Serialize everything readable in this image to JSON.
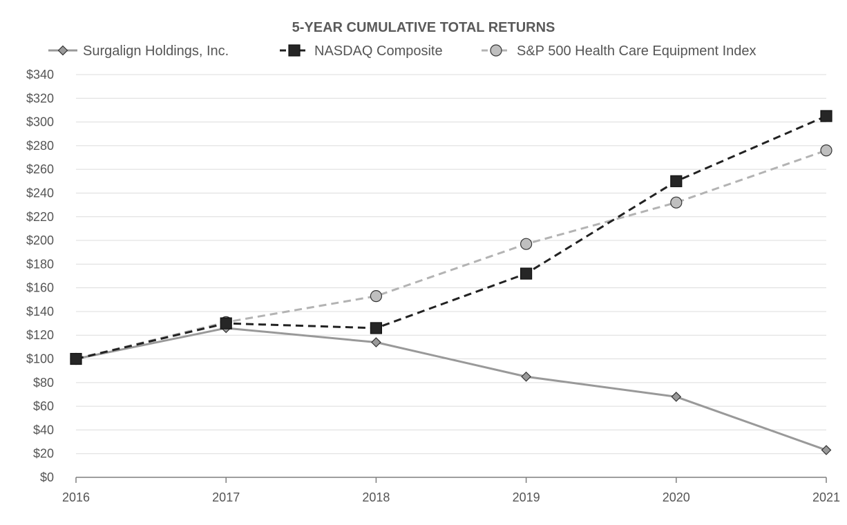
{
  "chart_data": {
    "type": "line",
    "title": "5-YEAR CUMULATIVE TOTAL RETURNS",
    "xlabel": "",
    "ylabel": "",
    "x": [
      "2016",
      "2017",
      "2018",
      "2019",
      "2020",
      "2021"
    ],
    "ylim": [
      0,
      340
    ],
    "ytick_step": 20,
    "ytick_prefix": "$",
    "grid": true,
    "legend_position": "top",
    "series": [
      {
        "name": "Surgalign Holdings, Inc.",
        "values": [
          100,
          126,
          114,
          85,
          68,
          23
        ],
        "marker": "diamond",
        "line_style": "solid",
        "color": "#999999",
        "marker_fill": "#999999"
      },
      {
        "name": "NASDAQ Composite",
        "values": [
          100,
          130,
          126,
          172,
          250,
          305
        ],
        "marker": "square",
        "line_style": "dashed",
        "color": "#222222",
        "marker_fill": "#262626"
      },
      {
        "name": "S&P 500 Health Care Equipment Index",
        "values": [
          100,
          131,
          153,
          197,
          232,
          276
        ],
        "marker": "circle",
        "line_style": "dashed",
        "color": "#b3b3b3",
        "marker_fill": "#bfbfbf"
      }
    ]
  }
}
